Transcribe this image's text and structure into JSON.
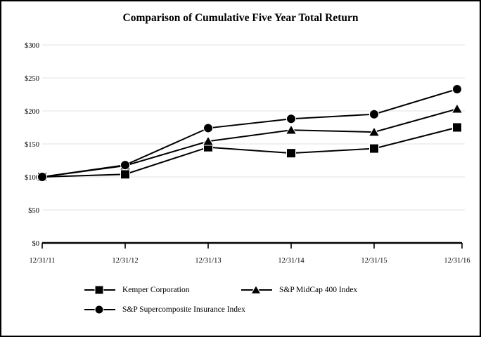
{
  "chart_data": {
    "type": "line",
    "title": "Comparison of Cumulative Five Year Total Return",
    "x": [
      "12/31/11",
      "12/31/12",
      "12/31/13",
      "12/31/14",
      "12/31/15",
      "12/31/16"
    ],
    "series": [
      {
        "name": "Kemper Corporation",
        "marker": "square",
        "color": "#000000",
        "values": [
          100,
          104,
          145,
          136,
          143,
          175
        ]
      },
      {
        "name": "S&P MidCap 400 Index",
        "marker": "triangle",
        "color": "#000000",
        "values": [
          100,
          117,
          154,
          171,
          168,
          203
        ]
      },
      {
        "name": "S&P Supercomposite Insurance Index",
        "marker": "circle",
        "color": "#000000",
        "values": [
          100,
          118,
          174,
          188,
          195,
          233
        ]
      }
    ],
    "ylim": [
      0,
      300
    ],
    "ytick_step": 50,
    "ytick_labels": [
      "$0",
      "$50",
      "$100",
      "$150",
      "$200",
      "$250",
      "$300"
    ],
    "grid": true,
    "gridline_color": "#e6e6e6",
    "axis_color": "#000000",
    "legend_position": "bottom"
  }
}
